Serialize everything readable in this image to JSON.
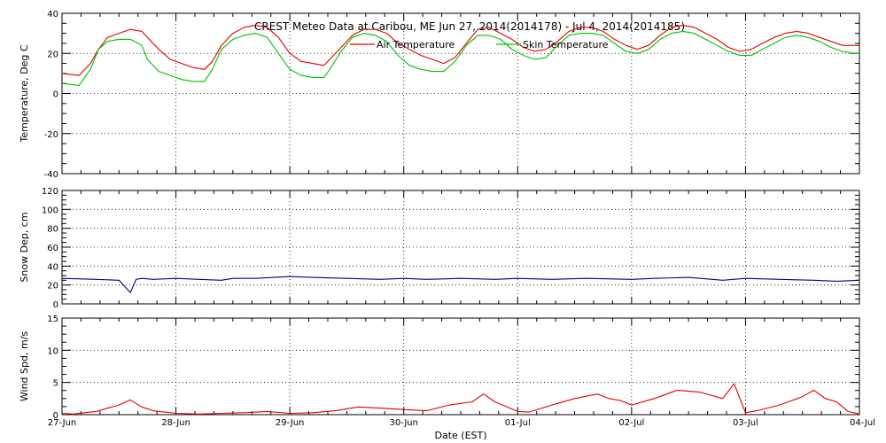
{
  "chart_data": {
    "type": "line",
    "title": "CREST Meteo Data at Caribou, ME   Jun 27, 2014(2014178) - Jul  4, 2014(2014185)",
    "xlabel": "Date (EST)",
    "x_ticks": [
      "27-Jun",
      "28-Jun",
      "29-Jun",
      "30-Jun",
      "01-Jul",
      "02-Jul",
      "03-Jul",
      "04-Jul"
    ],
    "x_range_days": [
      0,
      7
    ],
    "grid": true,
    "legend_placement": "top-center",
    "panels": [
      {
        "id": "temperature",
        "ylabel": "Temperature, Deg C",
        "ylim": [
          -40,
          40
        ],
        "y_ticks": [
          -40,
          -20,
          0,
          20,
          40
        ],
        "series": [
          {
            "name": "Air Temperature",
            "color": "#e00000",
            "x": [
              0.0,
              0.15,
              0.25,
              0.32,
              0.4,
              0.5,
              0.6,
              0.7,
              0.75,
              0.85,
              0.95,
              1.05,
              1.15,
              1.25,
              1.32,
              1.4,
              1.5,
              1.6,
              1.7,
              1.8,
              1.9,
              2.0,
              2.1,
              2.2,
              2.3,
              2.35,
              2.45,
              2.55,
              2.65,
              2.75,
              2.85,
              2.95,
              3.05,
              3.15,
              3.25,
              3.35,
              3.45,
              3.55,
              3.65,
              3.75,
              3.85,
              3.95,
              4.05,
              4.15,
              4.25,
              4.35,
              4.45,
              4.55,
              4.65,
              4.75,
              4.85,
              4.95,
              5.05,
              5.15,
              5.25,
              5.35,
              5.45,
              5.55,
              5.65,
              5.75,
              5.85,
              5.95,
              6.05,
              6.15,
              6.25,
              6.35,
              6.45,
              6.55,
              6.65,
              6.75,
              6.85,
              6.95,
              7.0
            ],
            "y": [
              10,
              9,
              15,
              22,
              28,
              30,
              32,
              31,
              28,
              22,
              17,
              15,
              13,
              12,
              16,
              24,
              30,
              33,
              34,
              33,
              28,
              20,
              16,
              15,
              14,
              17,
              23,
              29,
              32,
              32,
              30,
              25,
              22,
              19,
              17,
              15,
              18,
              25,
              32,
              33,
              30,
              27,
              23,
              21,
              22,
              26,
              31,
              33,
              33,
              31,
              27,
              24,
              22,
              24,
              29,
              33,
              34,
              33,
              30,
              27,
              23,
              21,
              22,
              25,
              28,
              30,
              31,
              30,
              28,
              26,
              24,
              24,
              24
            ]
          },
          {
            "name": "Skin Temperature",
            "color": "#00c000",
            "x": [
              0.0,
              0.15,
              0.25,
              0.32,
              0.4,
              0.5,
              0.6,
              0.7,
              0.75,
              0.85,
              0.95,
              1.05,
              1.15,
              1.25,
              1.32,
              1.4,
              1.5,
              1.6,
              1.7,
              1.8,
              1.9,
              2.0,
              2.1,
              2.2,
              2.3,
              2.35,
              2.45,
              2.55,
              2.65,
              2.75,
              2.85,
              2.95,
              3.05,
              3.15,
              3.25,
              3.35,
              3.45,
              3.55,
              3.65,
              3.75,
              3.85,
              3.95,
              4.05,
              4.15,
              4.25,
              4.35,
              4.45,
              4.55,
              4.65,
              4.75,
              4.85,
              4.95,
              5.05,
              5.15,
              5.25,
              5.35,
              5.45,
              5.55,
              5.65,
              5.75,
              5.85,
              5.95,
              6.05,
              6.15,
              6.25,
              6.35,
              6.45,
              6.55,
              6.65,
              6.75,
              6.85,
              6.95,
              7.0
            ],
            "y": [
              5,
              4,
              12,
              22,
              26,
              27,
              27,
              24,
              17,
              11,
              9,
              7,
              6,
              6,
              12,
              22,
              27,
              29,
              30,
              28,
              20,
              12,
              9,
              8,
              8,
              12,
              21,
              28,
              30,
              29,
              26,
              19,
              14,
              12,
              11,
              11,
              16,
              24,
              29,
              29,
              27,
              22,
              19,
              17,
              18,
              24,
              29,
              30,
              30,
              29,
              25,
              21,
              20,
              22,
              27,
              30,
              31,
              30,
              27,
              24,
              21,
              19,
              19,
              22,
              25,
              28,
              29,
              28,
              26,
              23,
              21,
              20,
              20
            ]
          }
        ]
      },
      {
        "id": "snow",
        "ylabel": "Snow Dep, cm",
        "ylim": [
          0,
          120
        ],
        "y_ticks": [
          0,
          20,
          40,
          60,
          80,
          100,
          120
        ],
        "series": [
          {
            "name": "",
            "color": "#000090",
            "x": [
              0.0,
              0.3,
              0.5,
              0.6,
              0.65,
              0.7,
              0.8,
              1.0,
              1.2,
              1.4,
              1.5,
              1.7,
              2.0,
              2.2,
              2.5,
              2.8,
              3.0,
              3.2,
              3.5,
              3.8,
              4.0,
              4.3,
              4.6,
              5.0,
              5.2,
              5.5,
              5.8,
              6.0,
              6.3,
              6.6,
              6.8,
              7.0
            ],
            "y": [
              27,
              26,
              25,
              12,
              26,
              27,
              26,
              27,
              26,
              25,
              27,
              27,
              29,
              28,
              27,
              26,
              27,
              26,
              27,
              26,
              27,
              26,
              27,
              26,
              27,
              28,
              25,
              27,
              26,
              25,
              24,
              25
            ]
          }
        ]
      },
      {
        "id": "wind",
        "ylabel": "Wind Spd, m/s",
        "ylim": [
          0,
          15
        ],
        "y_ticks": [
          0,
          5,
          10,
          15
        ],
        "series": [
          {
            "name": "",
            "color": "#e00000",
            "x": [
              0.0,
              0.1,
              0.2,
              0.3,
              0.4,
              0.5,
              0.6,
              0.7,
              0.8,
              0.9,
              1.0,
              1.2,
              1.4,
              1.6,
              1.8,
              2.0,
              2.2,
              2.4,
              2.6,
              2.8,
              3.0,
              3.2,
              3.4,
              3.6,
              3.7,
              3.8,
              4.0,
              4.1,
              4.3,
              4.5,
              4.7,
              4.8,
              4.9,
              5.0,
              5.2,
              5.4,
              5.6,
              5.8,
              5.9,
              6.0,
              6.1,
              6.3,
              6.5,
              6.6,
              6.7,
              6.8,
              6.9,
              7.0
            ],
            "y": [
              0.2,
              0.1,
              0.3,
              0.5,
              1.0,
              1.5,
              2.3,
              1.2,
              0.6,
              0.4,
              0.2,
              0.1,
              0.2,
              0.3,
              0.5,
              0.2,
              0.3,
              0.6,
              1.2,
              1.0,
              0.8,
              0.6,
              1.5,
              2.0,
              3.2,
              2.0,
              0.5,
              0.4,
              1.5,
              2.5,
              3.2,
              2.5,
              2.2,
              1.5,
              2.5,
              3.8,
              3.5,
              2.5,
              4.8,
              0.3,
              0.6,
              1.5,
              2.8,
              3.8,
              2.5,
              2.0,
              0.5,
              0.1
            ]
          }
        ]
      }
    ]
  }
}
